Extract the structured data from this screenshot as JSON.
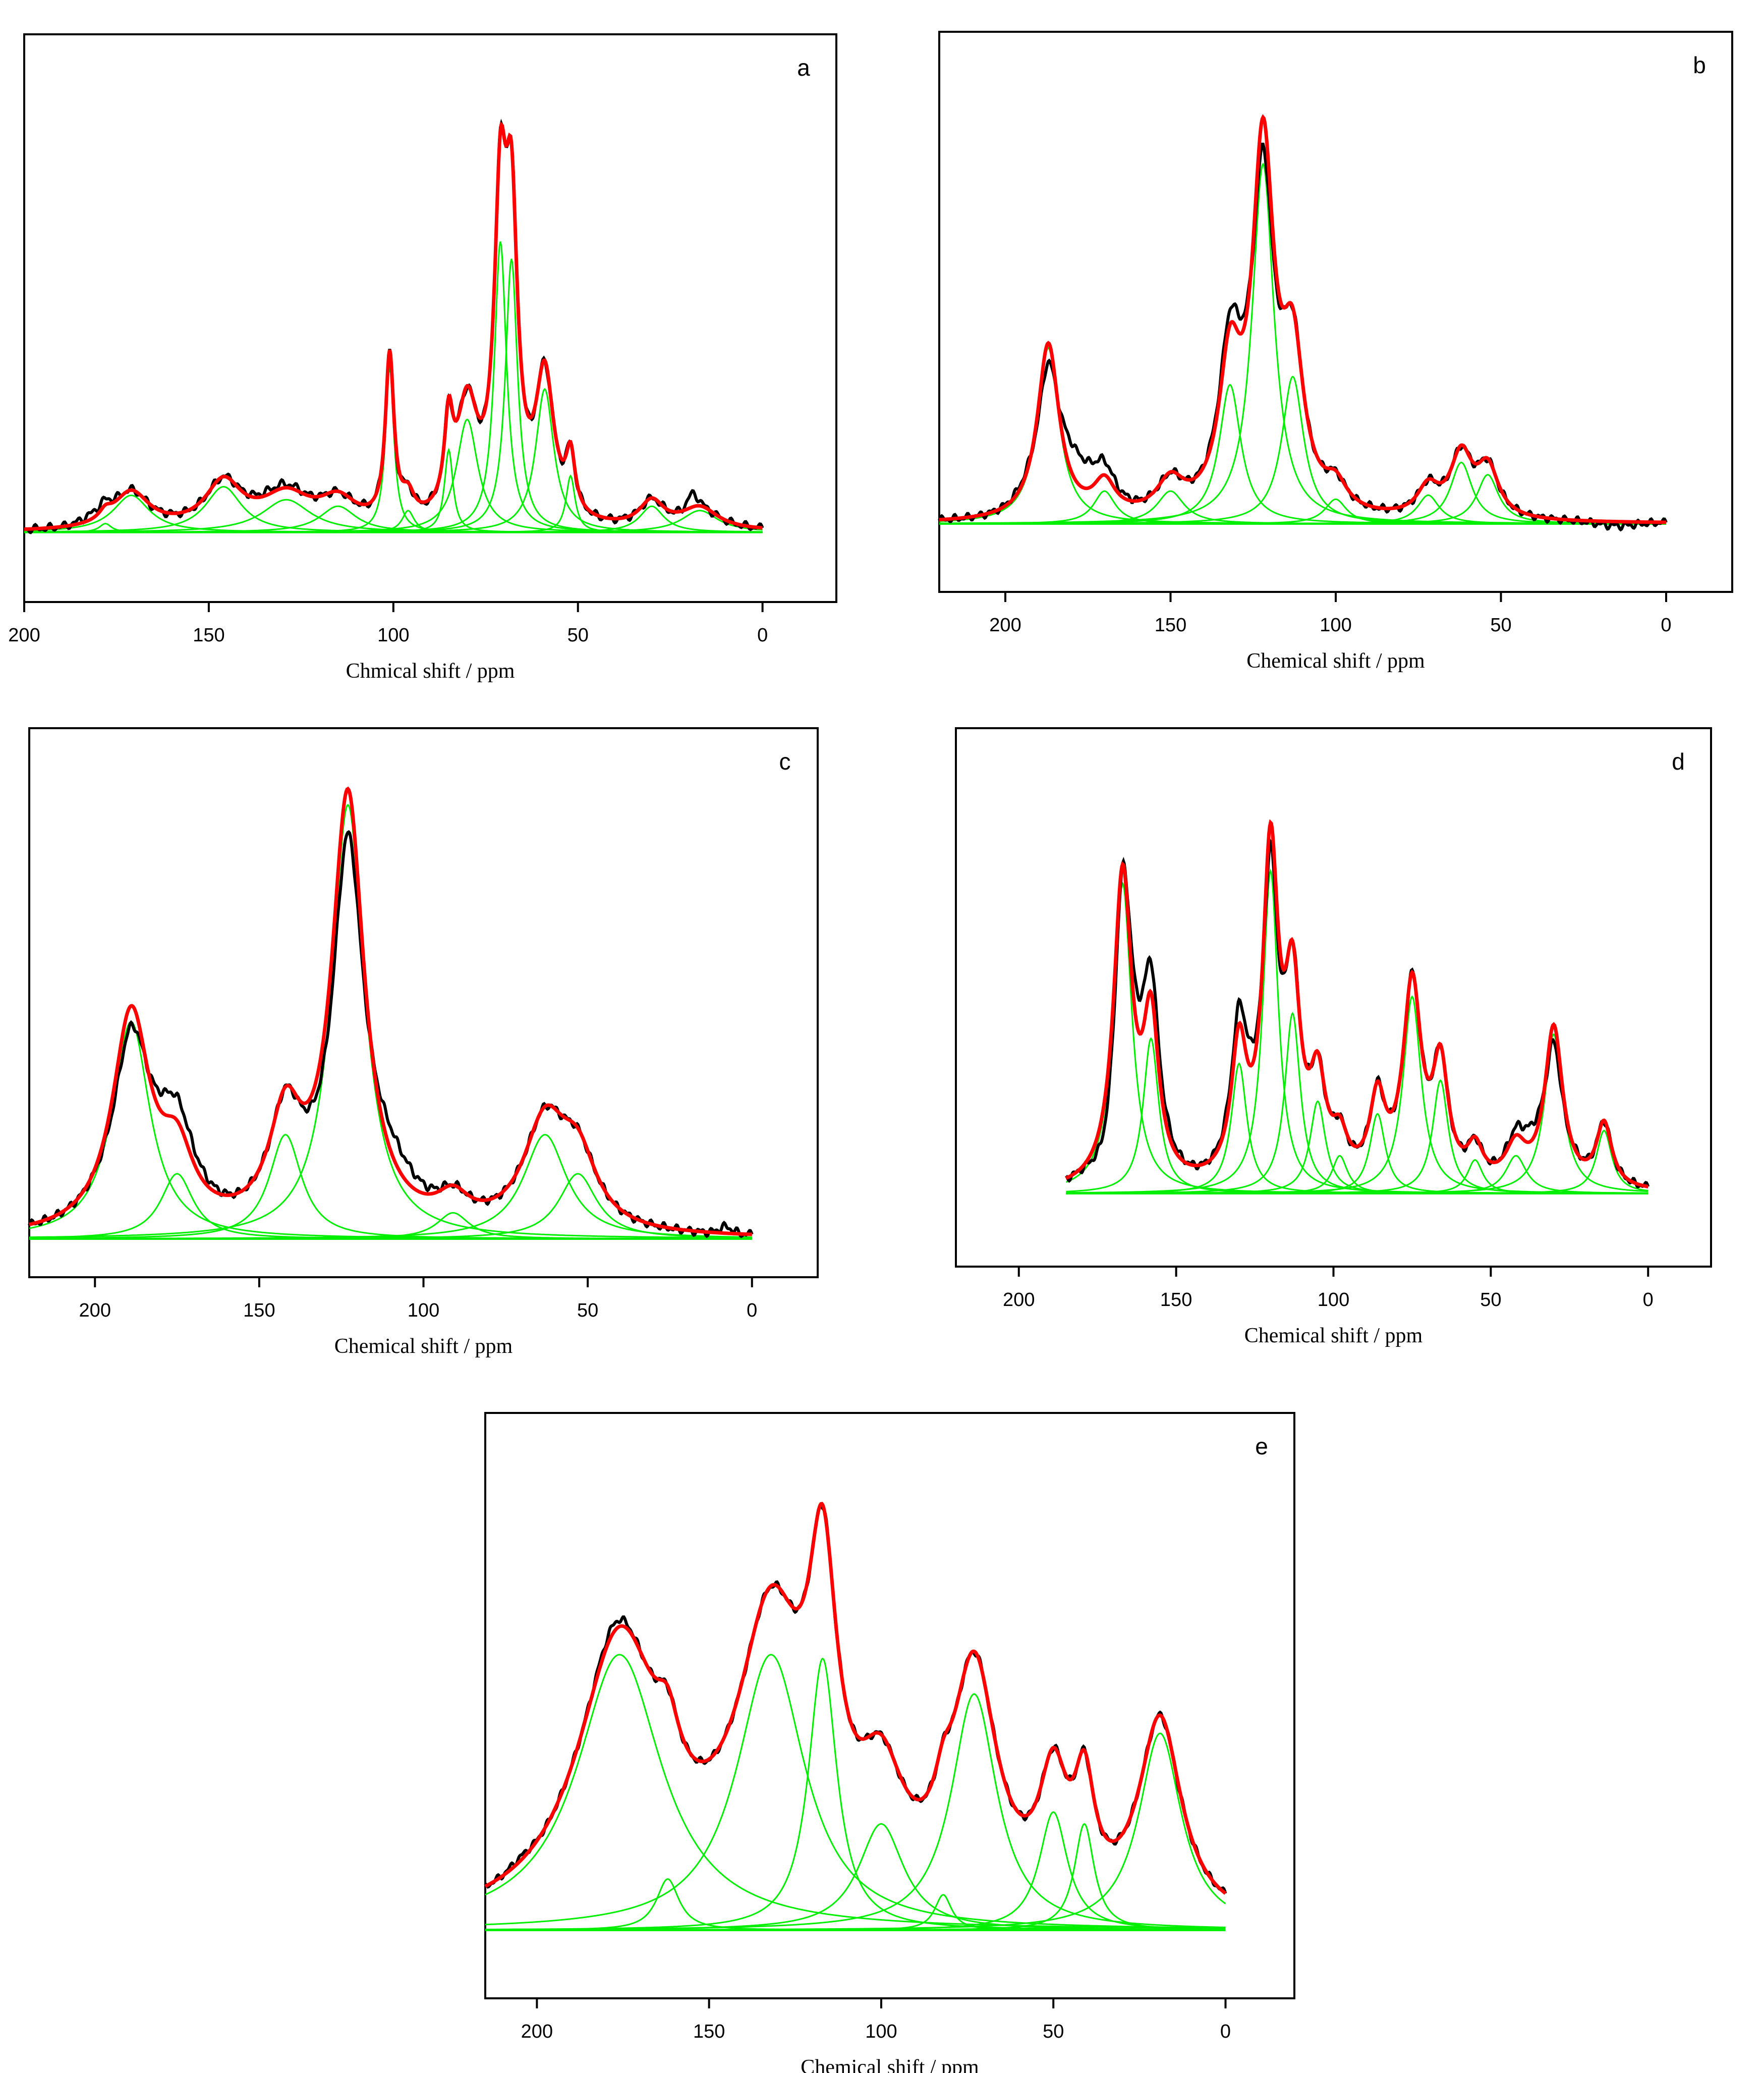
{
  "colors": {
    "experimental": "#000000",
    "fit": "#ff0000",
    "components": "#00ee00",
    "frame": "#000000"
  },
  "chart_data": [
    {
      "type": "line",
      "panel_label": "a",
      "xlabel": "Chmical shift / ppm",
      "xlim": [
        200,
        -20
      ],
      "x_ticks": [
        200,
        150,
        100,
        50,
        0
      ],
      "x_tick_labels": [
        "200",
        "150",
        "100",
        "50",
        "0"
      ],
      "y_axis_ticks": false,
      "fit_range": [
        200,
        0
      ],
      "baseline": 0.02,
      "peaks": [
        {
          "center": 178,
          "height": 0.02,
          "width": 2.0
        },
        {
          "center": 171,
          "height": 0.085,
          "width": 6.0
        },
        {
          "center": 146,
          "height": 0.105,
          "width": 6.0
        },
        {
          "center": 129,
          "height": 0.075,
          "width": 8.0
        },
        {
          "center": 115,
          "height": 0.06,
          "width": 6.0
        },
        {
          "center": 101,
          "height": 0.38,
          "width": 1.4
        },
        {
          "center": 96,
          "height": 0.05,
          "width": 2.0
        },
        {
          "center": 85,
          "height": 0.19,
          "width": 1.4
        },
        {
          "center": 80,
          "height": 0.26,
          "width": 3.5
        },
        {
          "center": 71,
          "height": 0.67,
          "width": 2.0
        },
        {
          "center": 68,
          "height": 0.63,
          "width": 2.0
        },
        {
          "center": 59,
          "height": 0.33,
          "width": 3.0
        },
        {
          "center": 52,
          "height": 0.13,
          "width": 1.5
        },
        {
          "center": 30,
          "height": 0.06,
          "width": 4.0
        },
        {
          "center": 17,
          "height": 0.05,
          "width": 6.0
        }
      ],
      "experimental_offsets": [
        {
          "center": 180,
          "value": 0.015,
          "width": 4
        },
        {
          "center": 19,
          "value": 0.03,
          "width": 1.5
        },
        {
          "center": 132,
          "value": 0.01,
          "width": 6
        }
      ]
    },
    {
      "type": "line",
      "panel_label": "b",
      "xlabel": "Chemical shift / ppm",
      "xlim": [
        220,
        -20
      ],
      "x_ticks": [
        200,
        150,
        100,
        50,
        0
      ],
      "x_tick_labels": [
        "200",
        "150",
        "100",
        "50",
        "0"
      ],
      "y_axis_ticks": false,
      "fit_range": [
        220,
        0
      ],
      "baseline": 0.0,
      "peaks": [
        {
          "center": 187,
          "height": 0.43,
          "width": 4.0
        },
        {
          "center": 170,
          "height": 0.08,
          "width": 4.0
        },
        {
          "center": 150,
          "height": 0.08,
          "width": 5.0
        },
        {
          "center": 132,
          "height": 0.34,
          "width": 4.0
        },
        {
          "center": 122,
          "height": 0.88,
          "width": 4.0
        },
        {
          "center": 113,
          "height": 0.36,
          "width": 4.0
        },
        {
          "center": 100,
          "height": 0.06,
          "width": 4.0
        },
        {
          "center": 72,
          "height": 0.07,
          "width": 4.0
        },
        {
          "center": 62,
          "height": 0.15,
          "width": 4.0
        },
        {
          "center": 54,
          "height": 0.12,
          "width": 4.0
        }
      ],
      "experimental_offsets": [
        {
          "center": 187,
          "value": -0.1,
          "width": 3
        },
        {
          "center": 180,
          "value": 0.08,
          "width": 8
        },
        {
          "center": 122,
          "value": -0.1,
          "width": 3
        },
        {
          "center": 128,
          "value": 0.05,
          "width": 6
        },
        {
          "center": 15,
          "value": -0.01,
          "width": 6
        }
      ]
    },
    {
      "type": "line",
      "panel_label": "c",
      "xlabel": "Chemical shift / ppm",
      "xlim": [
        220,
        -20
      ],
      "x_ticks": [
        200,
        150,
        100,
        50,
        0
      ],
      "x_tick_labels": [
        "200",
        "150",
        "100",
        "50",
        "0"
      ],
      "y_axis_ticks": false,
      "fit_range": [
        220,
        0
      ],
      "baseline": 0.0,
      "peaks": [
        {
          "center": 189,
          "height": 0.5,
          "width": 7.0
        },
        {
          "center": 175,
          "height": 0.15,
          "width": 6.0
        },
        {
          "center": 142,
          "height": 0.24,
          "width": 6.0
        },
        {
          "center": 123,
          "height": 1.0,
          "width": 6.0
        },
        {
          "center": 91,
          "height": 0.06,
          "width": 6.0
        },
        {
          "center": 63,
          "height": 0.24,
          "width": 8.0
        },
        {
          "center": 53,
          "height": 0.15,
          "width": 7.0
        }
      ],
      "experimental_offsets": [
        {
          "center": 123,
          "value": -0.13,
          "width": 6
        },
        {
          "center": 112,
          "value": 0.07,
          "width": 8
        },
        {
          "center": 189,
          "value": -0.07,
          "width": 5
        },
        {
          "center": 178,
          "value": 0.06,
          "width": 8
        },
        {
          "center": 8,
          "value": 0.015,
          "width": 2
        }
      ]
    },
    {
      "type": "line",
      "panel_label": "d",
      "xlabel": "Chemical shift / ppm",
      "xlim": [
        220,
        -20
      ],
      "x_ticks": [
        200,
        150,
        100,
        50,
        0
      ],
      "x_tick_labels": [
        "200",
        "150",
        "100",
        "50",
        "0"
      ],
      "y_axis_ticks": false,
      "fit_range": [
        185,
        0
      ],
      "baseline": 0.0,
      "peaks": [
        {
          "center": 167,
          "height": 0.74,
          "width": 3.5
        },
        {
          "center": 158,
          "height": 0.37,
          "width": 3.0
        },
        {
          "center": 130,
          "height": 0.31,
          "width": 3.0
        },
        {
          "center": 120,
          "height": 0.77,
          "width": 3.0
        },
        {
          "center": 113,
          "height": 0.43,
          "width": 3.0
        },
        {
          "center": 105,
          "height": 0.22,
          "width": 3.0
        },
        {
          "center": 98,
          "height": 0.09,
          "width": 3.0
        },
        {
          "center": 86,
          "height": 0.19,
          "width": 3.0
        },
        {
          "center": 75,
          "height": 0.47,
          "width": 3.5
        },
        {
          "center": 66,
          "height": 0.27,
          "width": 3.0
        },
        {
          "center": 55,
          "height": 0.08,
          "width": 3.0
        },
        {
          "center": 42,
          "height": 0.09,
          "width": 4.0
        },
        {
          "center": 30,
          "height": 0.38,
          "width": 3.5
        },
        {
          "center": 14,
          "height": 0.15,
          "width": 3.0
        }
      ],
      "experimental_offsets": [
        {
          "center": 170,
          "value": -0.1,
          "width": 4
        },
        {
          "center": 162,
          "value": 0.1,
          "width": 6
        },
        {
          "center": 120,
          "value": -0.1,
          "width": 3
        },
        {
          "center": 125,
          "value": 0.07,
          "width": 6
        },
        {
          "center": 30,
          "value": -0.08,
          "width": 3
        },
        {
          "center": 34,
          "value": 0.05,
          "width": 6
        }
      ]
    },
    {
      "type": "line",
      "panel_label": "e",
      "xlabel": "Chemical shift / ppm",
      "xlim": [
        215,
        -20
      ],
      "x_ticks": [
        200,
        150,
        100,
        50,
        0
      ],
      "x_tick_labels": [
        "200",
        "150",
        "100",
        "50",
        "0"
      ],
      "y_axis_ticks": false,
      "fit_range": [
        215,
        0
      ],
      "baseline": 0.0,
      "peaks": [
        {
          "center": 176,
          "height": 0.7,
          "width": 15.0
        },
        {
          "center": 162,
          "height": 0.13,
          "width": 4.0
        },
        {
          "center": 132,
          "height": 0.7,
          "width": 12.0
        },
        {
          "center": 117,
          "height": 0.69,
          "width": 5.0
        },
        {
          "center": 100,
          "height": 0.27,
          "width": 8.0
        },
        {
          "center": 82,
          "height": 0.09,
          "width": 3.0
        },
        {
          "center": 73,
          "height": 0.6,
          "width": 8.0
        },
        {
          "center": 50,
          "height": 0.3,
          "width": 5.0
        },
        {
          "center": 41,
          "height": 0.27,
          "width": 3.5
        },
        {
          "center": 19,
          "height": 0.5,
          "width": 7.5
        }
      ],
      "experimental_offsets": [
        {
          "center": 178,
          "value": 0.02,
          "width": 4
        },
        {
          "center": 205,
          "value": 0.01,
          "width": 3
        }
      ]
    }
  ]
}
